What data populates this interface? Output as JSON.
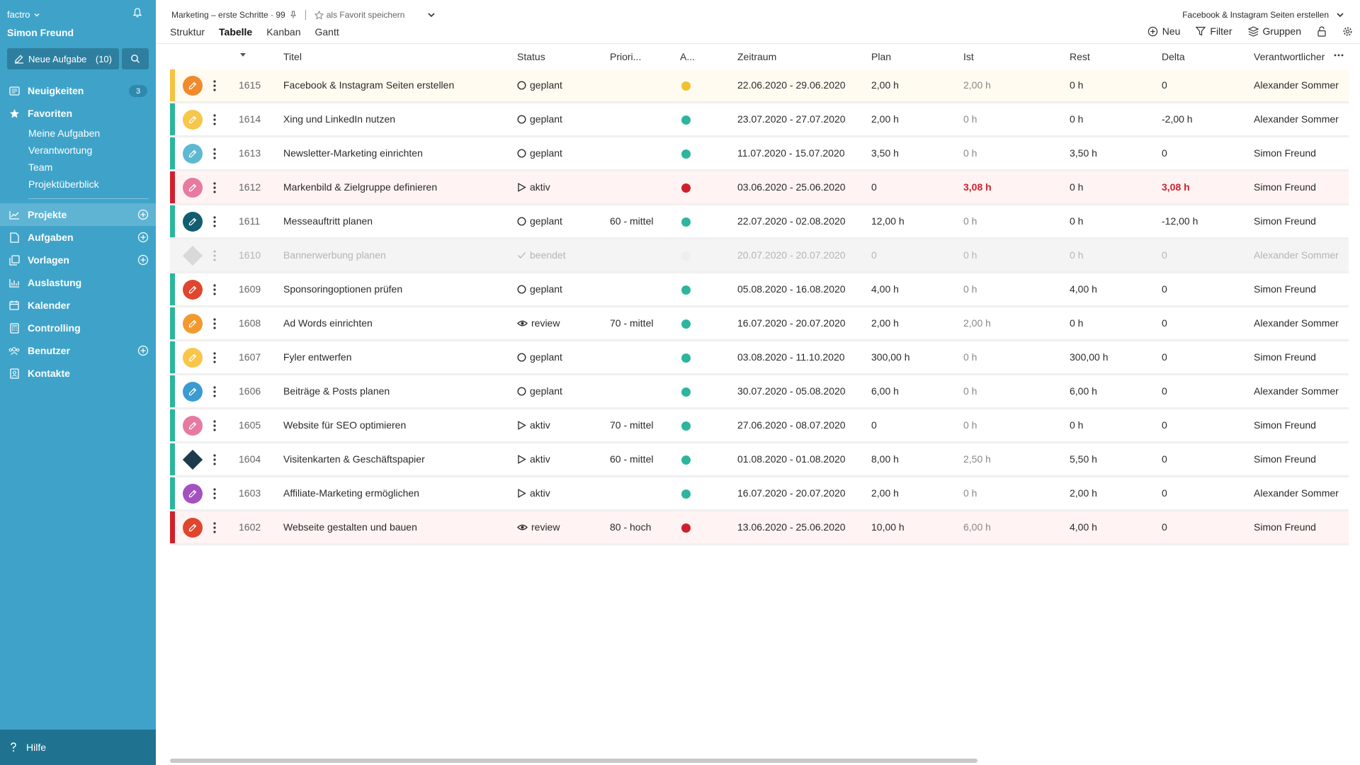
{
  "sidebar": {
    "app_name": "factro",
    "user_name": "Simon Freund",
    "new_task_label": "Neue Aufgabe",
    "new_task_count": "(10)",
    "nav": {
      "neuigkeiten": {
        "label": "Neuigkeiten",
        "badge": "3"
      },
      "favoriten": {
        "label": "Favoriten"
      },
      "sub": [
        "Meine Aufgaben",
        "Verantwortung",
        "Team",
        "Projektüberblick"
      ],
      "projekte": {
        "label": "Projekte"
      },
      "aufgaben": {
        "label": "Aufgaben"
      },
      "vorlagen": {
        "label": "Vorlagen"
      },
      "auslastung": {
        "label": "Auslastung"
      },
      "kalender": {
        "label": "Kalender"
      },
      "controlling": {
        "label": "Controlling"
      },
      "benutzer": {
        "label": "Benutzer"
      },
      "kontakte": {
        "label": "Kontakte"
      }
    },
    "help_label": "Hilfe"
  },
  "header": {
    "breadcrumb": "Marketing – erste Schritte · 99",
    "favorite_label": "als Favorit speichern",
    "tabs": [
      "Struktur",
      "Tabelle",
      "Kanban",
      "Gantt"
    ],
    "active_tab": "Tabelle",
    "right_title": "Facebook & Instagram Seiten erstellen",
    "tools": {
      "new": "Neu",
      "filter": "Filter",
      "groups": "Gruppen"
    }
  },
  "table": {
    "columns": {
      "titel": "Titel",
      "status": "Status",
      "prio": "Priori...",
      "ampel": "A...",
      "zeitraum": "Zeitraum",
      "plan": "Plan",
      "ist": "Ist",
      "rest": "Rest",
      "delta": "Delta",
      "verantwortlicher": "Verantwortlicher"
    },
    "rows": [
      {
        "stripe": "#f5c242",
        "icon": "circle",
        "icon_color": "#f08a2c",
        "id": "1615",
        "title": "Facebook & Instagram Seiten erstellen",
        "status_icon": "circle",
        "status": "geplant",
        "prio": "",
        "dot": "#f2c12e",
        "zeitraum": "22.06.2020 - 29.06.2020",
        "plan": "2,00 h",
        "ist": "2,00 h",
        "rest": "0 h",
        "delta": "0",
        "resp": "Alexander Sommer",
        "hl": "yellow"
      },
      {
        "stripe": "#2db59d",
        "icon": "circle",
        "icon_color": "#f7c64a",
        "id": "1614",
        "title": "Xing und LinkedIn nutzen",
        "status_icon": "circle",
        "status": "geplant",
        "prio": "",
        "dot": "#2db59d",
        "zeitraum": "23.07.2020 - 27.07.2020",
        "plan": "2,00 h",
        "ist": "0 h",
        "rest": "0 h",
        "delta": "-2,00 h",
        "resp": "Alexander Sommer",
        "hl": ""
      },
      {
        "stripe": "#2db59d",
        "icon": "circle",
        "icon_color": "#5fb8d2",
        "id": "1613",
        "title": "Newsletter-Marketing einrichten",
        "status_icon": "circle",
        "status": "geplant",
        "prio": "",
        "dot": "#2db59d",
        "zeitraum": "11.07.2020 - 15.07.2020",
        "plan": "3,50 h",
        "ist": "0 h",
        "rest": "3,50 h",
        "delta": "0",
        "resp": "Simon Freund",
        "hl": ""
      },
      {
        "stripe": "#d0202e",
        "icon": "circle",
        "icon_color": "#e77aa0",
        "id": "1612",
        "title": "Markenbild & Zielgruppe definieren",
        "status_icon": "play",
        "status": "aktiv",
        "prio": "",
        "dot": "#d0202e",
        "zeitraum": "03.06.2020 - 25.06.2020",
        "plan": "0",
        "ist": "3,08 h",
        "rest": "0 h",
        "delta": "3,08 h",
        "resp": "Simon Freund",
        "hl": "red",
        "ist_red": true,
        "delta_red": true
      },
      {
        "stripe": "#2db59d",
        "icon": "circle",
        "icon_color": "#125d70",
        "id": "1611",
        "title": "Messeauftritt planen",
        "status_icon": "circle",
        "status": "geplant",
        "prio": "60 - mittel",
        "dot": "#2db59d",
        "zeitraum": "22.07.2020 - 02.08.2020",
        "plan": "12,00 h",
        "ist": "0 h",
        "rest": "0 h",
        "delta": "-12,00 h",
        "resp": "Simon Freund",
        "hl": ""
      },
      {
        "stripe": "",
        "icon": "diamond-gray",
        "icon_color": "#d9d9d9",
        "id": "1610",
        "title": "Bannerwerbung planen",
        "status_icon": "check",
        "status": "beendet",
        "prio": "",
        "dot": "#eeeeee",
        "zeitraum": "20.07.2020 - 20.07.2020",
        "plan": "0",
        "ist": "0 h",
        "rest": "0 h",
        "delta": "0",
        "resp": "Alexander Sommer",
        "hl": "done"
      },
      {
        "stripe": "#2db59d",
        "icon": "circle",
        "icon_color": "#e0462e",
        "id": "1609",
        "title": "Sponsoringoptionen prüfen",
        "status_icon": "circle",
        "status": "geplant",
        "prio": "",
        "dot": "#2db59d",
        "zeitraum": "05.08.2020 - 16.08.2020",
        "plan": "4,00 h",
        "ist": "0 h",
        "rest": "4,00 h",
        "delta": "0",
        "resp": "Simon Freund",
        "hl": ""
      },
      {
        "stripe": "#2db59d",
        "icon": "circle",
        "icon_color": "#f39a2f",
        "id": "1608",
        "title": "Ad Words einrichten",
        "status_icon": "eye",
        "status": "review",
        "prio": "70 - mittel",
        "dot": "#2db59d",
        "zeitraum": "16.07.2020 - 20.07.2020",
        "plan": "2,00 h",
        "ist": "2,00 h",
        "rest": "0 h",
        "delta": "0",
        "resp": "Alexander Sommer",
        "hl": ""
      },
      {
        "stripe": "#2db59d",
        "icon": "circle",
        "icon_color": "#f7c64a",
        "id": "1607",
        "title": "Fyler entwerfen",
        "status_icon": "circle",
        "status": "geplant",
        "prio": "",
        "dot": "#2db59d",
        "zeitraum": "03.08.2020 - 11.10.2020",
        "plan": "300,00 h",
        "ist": "0 h",
        "rest": "300,00 h",
        "delta": "0",
        "resp": "Simon Freund",
        "hl": ""
      },
      {
        "stripe": "#2db59d",
        "icon": "circle",
        "icon_color": "#3a9bd1",
        "id": "1606",
        "title": "Beiträge & Posts planen",
        "status_icon": "circle",
        "status": "geplant",
        "prio": "",
        "dot": "#2db59d",
        "zeitraum": "30.07.2020 - 05.08.2020",
        "plan": "6,00 h",
        "ist": "0 h",
        "rest": "6,00 h",
        "delta": "0",
        "resp": "Alexander Sommer",
        "hl": ""
      },
      {
        "stripe": "#2db59d",
        "icon": "circle",
        "icon_color": "#e77aa0",
        "id": "1605",
        "title": "Website für SEO optimieren",
        "status_icon": "play",
        "status": "aktiv",
        "prio": "70 - mittel",
        "dot": "#2db59d",
        "zeitraum": "27.06.2020 - 08.07.2020",
        "plan": "0",
        "ist": "0 h",
        "rest": "0 h",
        "delta": "0",
        "resp": "Simon Freund",
        "hl": ""
      },
      {
        "stripe": "#2db59d",
        "icon": "diamond",
        "icon_color": "#1f3a4d",
        "id": "1604",
        "title": "Visitenkarten & Geschäftspapier",
        "status_icon": "play",
        "status": "aktiv",
        "prio": "60 - mittel",
        "dot": "#2db59d",
        "zeitraum": "01.08.2020 - 01.08.2020",
        "plan": "8,00 h",
        "ist": "2,50 h",
        "rest": "5,50 h",
        "delta": "0",
        "resp": "Simon Freund",
        "hl": ""
      },
      {
        "stripe": "#2db59d",
        "icon": "circle",
        "icon_color": "#a352c0",
        "id": "1603",
        "title": "Affiliate-Marketing ermöglichen",
        "status_icon": "play",
        "status": "aktiv",
        "prio": "",
        "dot": "#2db59d",
        "zeitraum": "16.07.2020 - 20.07.2020",
        "plan": "2,00 h",
        "ist": "0 h",
        "rest": "2,00 h",
        "delta": "0",
        "resp": "Alexander Sommer",
        "hl": ""
      },
      {
        "stripe": "#d0202e",
        "icon": "circle",
        "icon_color": "#e0462e",
        "id": "1602",
        "title": "Webseite gestalten und bauen",
        "status_icon": "eye",
        "status": "review",
        "prio": "80 - hoch",
        "dot": "#d0202e",
        "zeitraum": "13.06.2020 - 25.06.2020",
        "plan": "10,00 h",
        "ist": "6,00 h",
        "rest": "4,00 h",
        "delta": "0",
        "resp": "Simon Freund",
        "hl": "red"
      }
    ]
  }
}
